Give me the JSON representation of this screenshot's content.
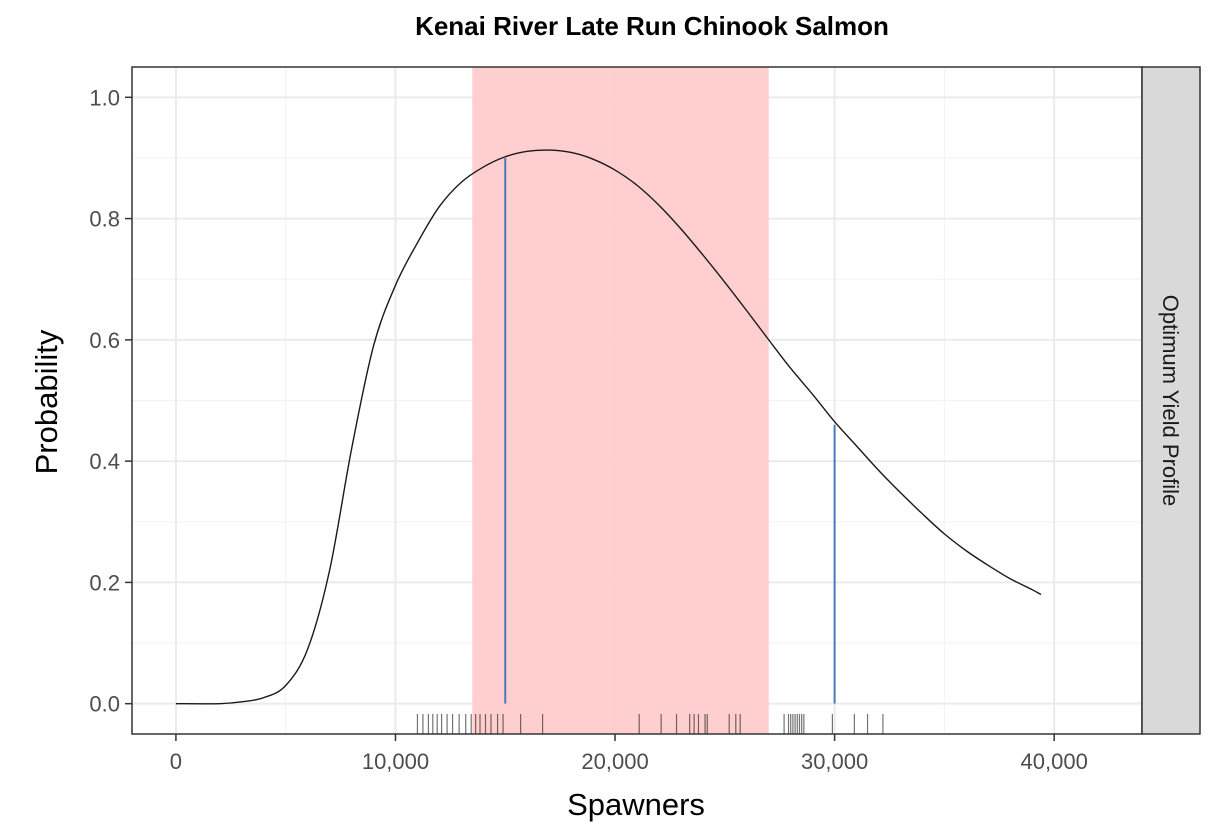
{
  "chart_data": {
    "type": "line",
    "title": "Kenai River Late Run Chinook Salmon",
    "xlabel": "Spawners",
    "ylabel": "Probability",
    "facet_label": "Optimum Yield Profile",
    "xlim": [
      -2000,
      44000
    ],
    "ylim": [
      -0.05,
      1.05
    ],
    "x_ticks": [
      0,
      10000,
      20000,
      30000,
      40000
    ],
    "x_tick_labels": [
      "0",
      "10,000",
      "20,000",
      "30,000",
      "40,000"
    ],
    "y_ticks": [
      0.0,
      0.2,
      0.4,
      0.6,
      0.8,
      1.0
    ],
    "y_tick_labels": [
      "0.0",
      "0.2",
      "0.4",
      "0.6",
      "0.8",
      "1.0"
    ],
    "grid": true,
    "shaded_range": {
      "x_start": 13500,
      "x_end": 27000,
      "color": "#ffcccc"
    },
    "vertical_lines": [
      {
        "x": 15000,
        "y": 0.9,
        "color": "#4a7bb7"
      },
      {
        "x": 30000,
        "y": 0.46,
        "color": "#4a7bb7"
      }
    ],
    "series": [
      {
        "color": "#1a1a1a",
        "x": [
          0,
          2000,
          3000,
          4000,
          5000,
          6000,
          7000,
          8000,
          9000,
          10000,
          11000,
          12000,
          13000,
          14000,
          15000,
          16000,
          17000,
          18000,
          19000,
          20000,
          21000,
          22000,
          23000,
          24000,
          25000,
          26000,
          27000,
          28000,
          29000,
          30000,
          31000,
          32000,
          33000,
          34000,
          35000,
          36000,
          37000,
          38000,
          39000,
          39400
        ],
        "y": [
          0.0,
          0.0,
          0.003,
          0.01,
          0.03,
          0.09,
          0.22,
          0.42,
          0.59,
          0.69,
          0.76,
          0.82,
          0.86,
          0.885,
          0.902,
          0.911,
          0.913,
          0.909,
          0.898,
          0.88,
          0.855,
          0.822,
          0.783,
          0.74,
          0.695,
          0.648,
          0.6,
          0.553,
          0.51,
          0.465,
          0.425,
          0.385,
          0.348,
          0.313,
          0.28,
          0.252,
          0.228,
          0.206,
          0.188,
          0.18
        ]
      }
    ],
    "rug": {
      "color": "#000000",
      "x": [
        11000,
        11250,
        11500,
        11700,
        11900,
        12100,
        12350,
        12600,
        12900,
        13200,
        13450,
        13650,
        13850,
        14100,
        14350,
        14650,
        14900,
        15700,
        16700,
        21100,
        22100,
        22800,
        23400,
        23600,
        23800,
        24100,
        24200,
        25200,
        25500,
        25700,
        27700,
        27900,
        28000,
        28100,
        28200,
        28300,
        28400,
        28500,
        28600,
        29900,
        30900,
        31500,
        32200
      ]
    }
  }
}
